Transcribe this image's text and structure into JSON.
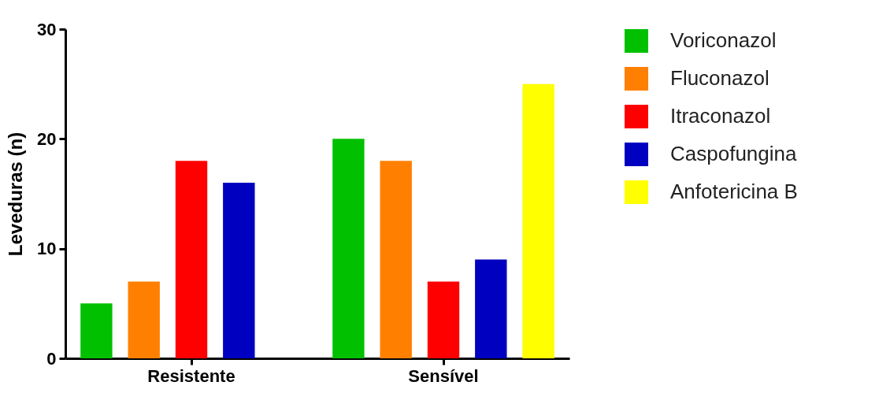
{
  "chart_data": {
    "type": "bar",
    "ylabel": "Leveduras (n)",
    "categories": [
      "Resistente",
      "Sensível"
    ],
    "series": [
      {
        "name": "Voriconazol",
        "color": "#00c000",
        "values": [
          5,
          20
        ]
      },
      {
        "name": "Fluconazol",
        "color": "#ff8000",
        "values": [
          7,
          18
        ]
      },
      {
        "name": "Itraconazol",
        "color": "#ff0000",
        "values": [
          18,
          7
        ]
      },
      {
        "name": "Caspofungina",
        "color": "#0000c0",
        "values": [
          16,
          9
        ]
      },
      {
        "name": "Anfotericina B",
        "color": "#ffff00",
        "values": [
          0,
          25
        ]
      }
    ],
    "ylim": [
      0,
      30
    ],
    "yticks": [
      0,
      10,
      20,
      30
    ],
    "grid": false,
    "legend": "right"
  }
}
